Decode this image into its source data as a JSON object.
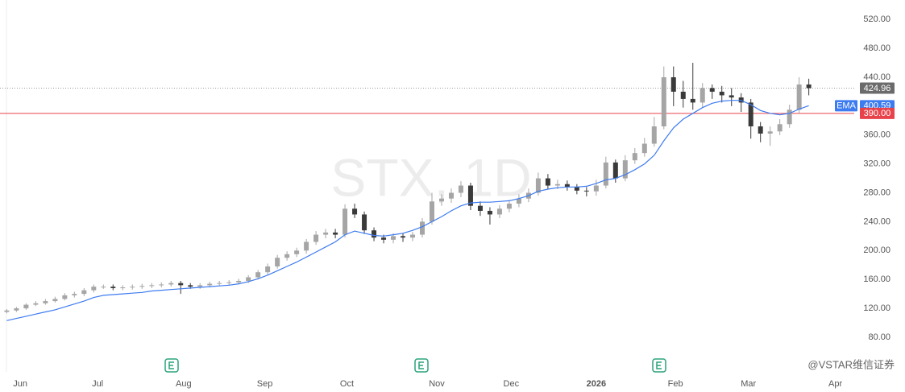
{
  "chart_data": {
    "type": "candlestick",
    "title": "STX, 1D",
    "open": [
      115,
      117,
      120,
      125,
      127,
      130,
      133,
      138,
      140,
      145,
      150,
      150,
      148,
      149,
      150,
      151,
      152,
      153,
      155,
      152,
      150,
      152,
      154,
      155,
      156,
      158,
      163,
      170,
      178,
      190,
      195,
      200,
      212,
      222,
      225,
      222,
      258,
      250,
      228,
      218,
      215,
      220,
      218,
      222,
      240,
      268,
      272,
      280,
      290,
      262,
      255,
      250,
      258,
      265,
      272,
      280,
      300,
      290,
      292,
      288,
      283,
      282,
      290,
      322,
      300,
      325,
      335,
      348,
      372,
      440,
      420,
      410,
      405,
      425,
      420,
      415,
      412,
      405,
      372,
      362,
      365,
      375,
      395,
      430
    ],
    "high": [
      119,
      122,
      127,
      130,
      133,
      136,
      141,
      143,
      148,
      153,
      153,
      153,
      152,
      153,
      154,
      155,
      156,
      158,
      158,
      155,
      155,
      157,
      158,
      159,
      161,
      166,
      173,
      182,
      194,
      199,
      204,
      216,
      227,
      230,
      230,
      264,
      265,
      254,
      232,
      222,
      224,
      224,
      226,
      245,
      280,
      278,
      286,
      296,
      294,
      268,
      260,
      263,
      270,
      278,
      286,
      308,
      306,
      298,
      297,
      292,
      288,
      298,
      330,
      326,
      332,
      342,
      356,
      385,
      455,
      455,
      435,
      460,
      432,
      430,
      428,
      425,
      418,
      410,
      378,
      372,
      382,
      402,
      440,
      438
    ],
    "low": [
      113,
      115,
      118,
      123,
      125,
      128,
      131,
      135,
      137,
      142,
      147,
      145,
      145,
      146,
      147,
      148,
      149,
      150,
      140,
      147,
      147,
      149,
      151,
      152,
      153,
      155,
      160,
      167,
      175,
      186,
      191,
      196,
      208,
      217,
      217,
      218,
      245,
      223,
      213,
      210,
      210,
      212,
      213,
      218,
      236,
      262,
      266,
      274,
      256,
      248,
      236,
      245,
      253,
      260,
      267,
      276,
      285,
      285,
      283,
      278,
      275,
      276,
      286,
      294,
      296,
      320,
      330,
      344,
      368,
      400,
      398,
      395,
      398,
      410,
      405,
      400,
      392,
      355,
      350,
      345,
      360,
      370,
      390,
      415
    ],
    "close": [
      117,
      120,
      125,
      127,
      130,
      133,
      138,
      140,
      145,
      150,
      150,
      148,
      149,
      150,
      151,
      152,
      153,
      155,
      152,
      150,
      152,
      154,
      155,
      156,
      158,
      163,
      170,
      178,
      190,
      195,
      200,
      212,
      222,
      225,
      222,
      258,
      250,
      228,
      218,
      215,
      220,
      218,
      222,
      240,
      268,
      272,
      280,
      290,
      262,
      255,
      250,
      258,
      265,
      272,
      280,
      300,
      290,
      292,
      288,
      283,
      282,
      290,
      322,
      300,
      325,
      335,
      348,
      372,
      440,
      420,
      410,
      405,
      425,
      420,
      415,
      412,
      405,
      372,
      362,
      365,
      375,
      395,
      430,
      424.96
    ],
    "up_color": "#a5a5a5",
    "down_color": "#3a3a3a",
    "ema": {
      "name": "EMA",
      "color": "#3d7bf0",
      "last_label": "400.59",
      "values": [
        103,
        106,
        109,
        112,
        115,
        118,
        122,
        126,
        130,
        135,
        138,
        139,
        140,
        141,
        142,
        144,
        145,
        146,
        147,
        148,
        149,
        150,
        151,
        152,
        154,
        157,
        161,
        166,
        172,
        178,
        184,
        191,
        198,
        205,
        212,
        222,
        227,
        224,
        221,
        220,
        222,
        224,
        228,
        233,
        240,
        247,
        255,
        262,
        266,
        267,
        267,
        268,
        269,
        272,
        276,
        282,
        285,
        287,
        288,
        288,
        289,
        293,
        298,
        300,
        305,
        312,
        320,
        332,
        352,
        370,
        382,
        390,
        398,
        404,
        407,
        408,
        408,
        402,
        394,
        390,
        388,
        390,
        396,
        400.59
      ]
    },
    "price_line": {
      "value": 424.96,
      "label": "424.96",
      "color": "#6b6b6b"
    },
    "alert_line": {
      "value": 390,
      "label": "390.00",
      "color": "#e8434a"
    },
    "xlim": [
      -0.7,
      87.7
    ],
    "xticks": [
      {
        "value": 1.4,
        "label": "Jun"
      },
      {
        "value": 9.4,
        "label": "Jul"
      },
      {
        "value": 18.3,
        "label": "Aug"
      },
      {
        "value": 26.7,
        "label": "Sep"
      },
      {
        "value": 35.2,
        "label": "Oct"
      },
      {
        "value": 44.5,
        "label": "Nov"
      },
      {
        "value": 52.2,
        "label": "Dec"
      },
      {
        "value": 61,
        "label": "2026"
      },
      {
        "value": 69.2,
        "label": "Feb"
      },
      {
        "value": 76.75,
        "label": "Mar"
      },
      {
        "value": 85.75,
        "label": "Apr"
      }
    ],
    "ylim": [
      32,
      547
    ],
    "yticks": [
      {
        "value": 80,
        "label": "80.00"
      },
      {
        "value": 120,
        "label": "120.00"
      },
      {
        "value": 160,
        "label": "160.00"
      },
      {
        "value": 200,
        "label": "200.00"
      },
      {
        "value": 240,
        "label": "240.00"
      },
      {
        "value": 280,
        "label": "280.00"
      },
      {
        "value": 320,
        "label": "320.00"
      },
      {
        "value": 360,
        "label": "360.00"
      },
      {
        "value": 400,
        "label": "400.00"
      },
      {
        "value": 440,
        "label": "440.00"
      },
      {
        "value": 480,
        "label": "480.00"
      },
      {
        "value": 520,
        "label": "520.00"
      }
    ],
    "source": "@VSTAR维信证券"
  }
}
